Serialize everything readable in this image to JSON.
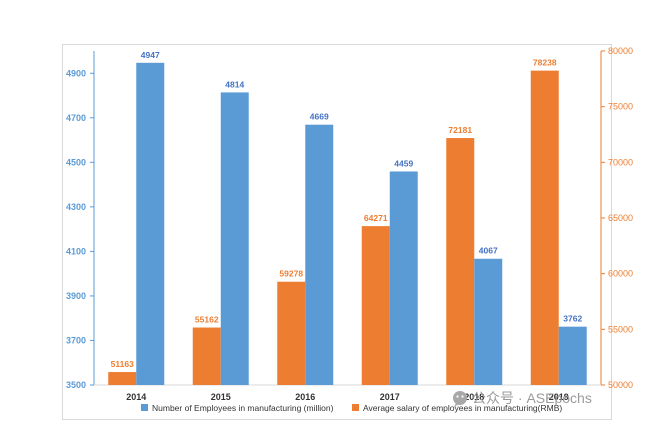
{
  "chart_data": {
    "type": "bar",
    "categories": [
      "2014",
      "2015",
      "2016",
      "2017",
      "2018",
      "2019"
    ],
    "series": [
      {
        "name": "Number of Employees in manufacturing (million)",
        "values": [
          4947,
          4814,
          4669,
          4459,
          4067,
          3762
        ],
        "axis": "left",
        "color": "#5b9bd5",
        "label_color": "#4472c4"
      },
      {
        "name": "Average salary of employees in manufacturing(RMB)",
        "values": [
          51163,
          55162,
          59278,
          64271,
          72181,
          78238
        ],
        "axis": "right",
        "color": "#ed7d31",
        "label_color": "#ed7d31"
      }
    ],
    "y_left": {
      "min": 3500,
      "max": 5000,
      "ticks": [
        "3500",
        "3700",
        "3900",
        "4100",
        "4300",
        "4500",
        "4700",
        "4900"
      ],
      "tick_values": [
        3500,
        3700,
        3900,
        4100,
        4300,
        4500,
        4700,
        4900
      ],
      "color": "#5b9bd5"
    },
    "y_right": {
      "min": 50000,
      "max": 80000,
      "ticks": [
        "50000",
        "55000",
        "60000",
        "65000",
        "70000",
        "75000",
        "80000"
      ],
      "tick_values": [
        50000,
        55000,
        60000,
        65000,
        70000,
        75000,
        80000
      ],
      "color": "#ed7d31"
    },
    "grid": false,
    "legend_position": "bottom",
    "title": "",
    "xlabel": "",
    "ylabel": ""
  },
  "watermark": {
    "icon": "wechat-icon",
    "text": "公众号 · ASEpochs"
  }
}
